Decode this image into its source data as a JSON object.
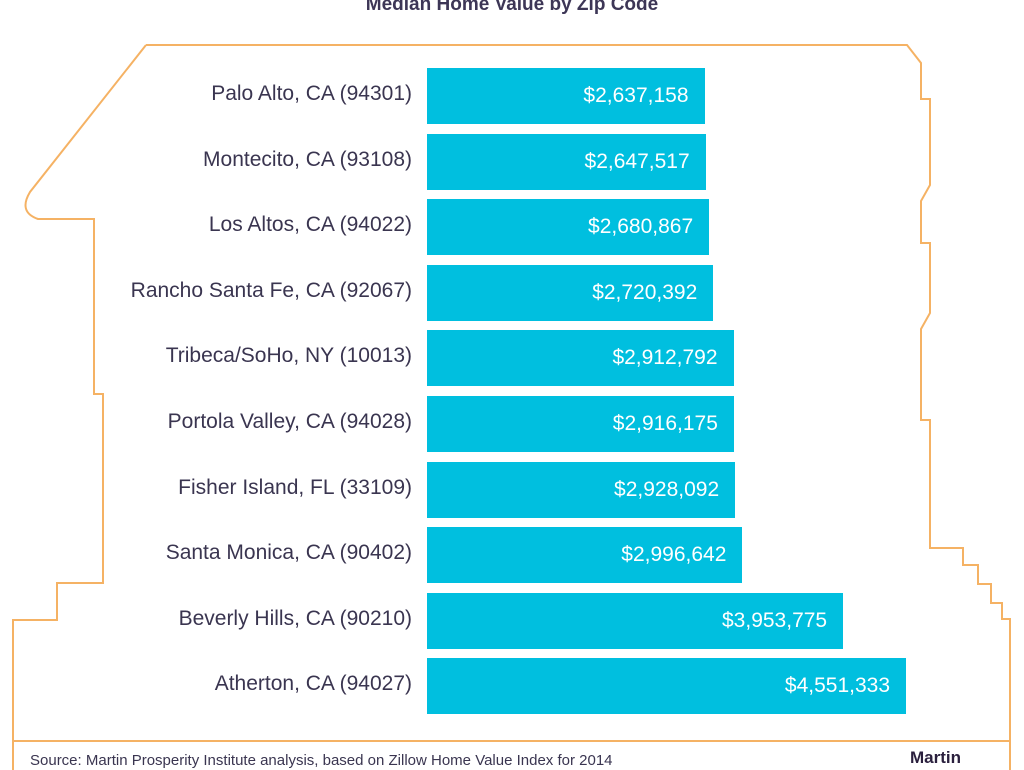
{
  "chart_data": {
    "type": "bar",
    "orientation": "horizontal",
    "title": "Median Home Value by Zip Code",
    "categories": [
      "Palo Alto, CA (94301)",
      "Montecito, CA (93108)",
      "Los Altos, CA (94022)",
      "Rancho Santa Fe, CA (92067)",
      "Tribeca/SoHo, NY (10013)",
      "Portola Valley, CA (94028)",
      "Fisher Island, FL (33109)",
      "Santa Monica, CA (90402)",
      "Beverly Hills, CA (90210)",
      "Atherton, CA (94027)"
    ],
    "values": [
      2637158,
      2647517,
      2680867,
      2720392,
      2912792,
      2916175,
      2928092,
      2996642,
      3953775,
      4551333
    ],
    "value_labels": [
      "$2,637,158",
      "$2,647,517",
      "$2,680,867",
      "$2,720,392",
      "$2,912,792",
      "$2,916,175",
      "$2,928,092",
      "$2,996,642",
      "$3,953,775",
      "$4,551,333"
    ],
    "xlabel": "",
    "ylabel": "",
    "grid": false,
    "colors": {
      "bar": "#00bfdf",
      "outline": "#f5b264",
      "text": "#3a3550"
    }
  },
  "source": "Source: Martin Prosperity Institute analysis, based on Zillow Home Value Index for 2014",
  "logo": "Martin"
}
